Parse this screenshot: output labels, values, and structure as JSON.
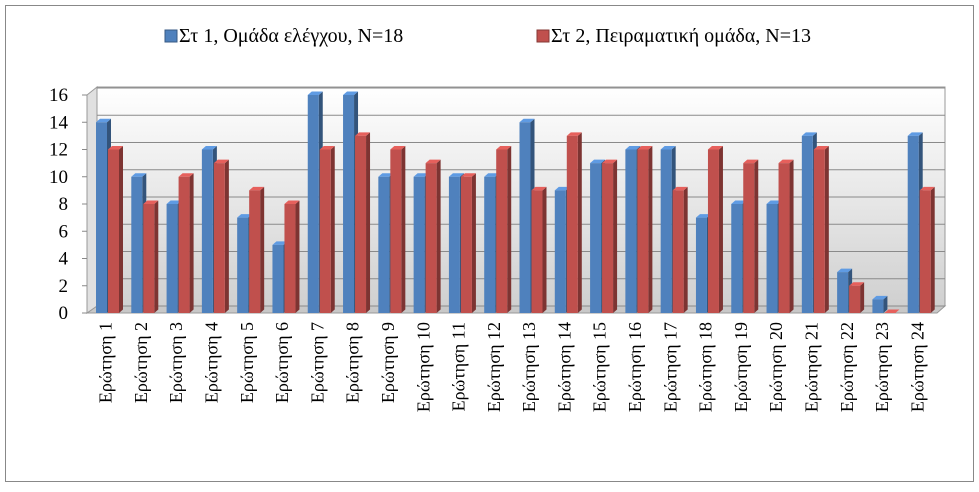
{
  "chart_data": {
    "type": "bar",
    "categories": [
      "Ερώτηση 1",
      "Ερώτηση 2",
      "Ερώτηση 3",
      "Ερώτηση 4",
      "Ερώτηση 5",
      "Ερώτηση 6",
      "Ερώτηση 7",
      "Ερώτηση 8",
      "Ερώτηση 9",
      "Ερώτηση 10",
      "Ερώτηση 11",
      "Ερώτηση 12",
      "Ερώτηση 13",
      "Ερώτηση 14",
      "Ερώτηση 15",
      "Ερώτηση 16",
      "Ερώτηση 17",
      "Ερώτηση 18",
      "Ερώτηση 19",
      "Ερώτηση 20",
      "Ερώτηση 21",
      "Ερώτηση 22",
      "Ερώτηση 23",
      "Ερώτηση 24"
    ],
    "series": [
      {
        "name": "Στ 1, Ομάδα ελέγχου, N=18",
        "color": "#4f81bd",
        "values": [
          14,
          10,
          8,
          12,
          7,
          5,
          16,
          16,
          10,
          10,
          10,
          10,
          14,
          9,
          11,
          12,
          12,
          7,
          8,
          8,
          13,
          3,
          1,
          13
        ]
      },
      {
        "name": "Στ 2, Πειραματική ομάδα, N=13",
        "color": "#c0504d",
        "values": [
          12,
          8,
          10,
          11,
          9,
          8,
          12,
          13,
          12,
          11,
          10,
          12,
          9,
          13,
          11,
          12,
          9,
          12,
          11,
          11,
          12,
          2,
          0,
          9
        ]
      }
    ],
    "ylim": [
      0,
      16
    ],
    "yticks": [
      0,
      2,
      4,
      6,
      8,
      10,
      12,
      14,
      16
    ],
    "grid": true,
    "legend": "top"
  }
}
